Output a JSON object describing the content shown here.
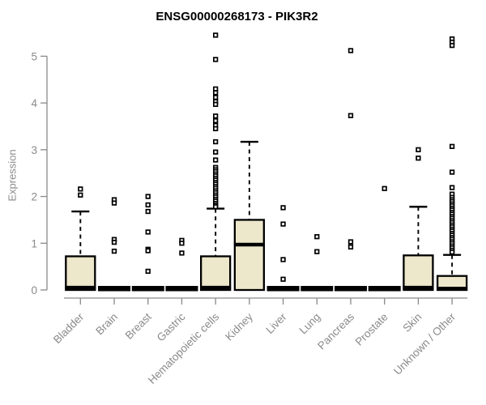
{
  "chart_data": {
    "type": "boxplot",
    "title": "ENSG00000268173 - PIK3R2",
    "ylabel": "Expression",
    "xlabel": "",
    "ylim": [
      0,
      5.5
    ],
    "yticks": [
      0,
      1,
      2,
      3,
      4,
      5
    ],
    "grid": false,
    "legend": false,
    "categories": [
      "Bladder",
      "Brain",
      "Breast",
      "Gastric",
      "Hematopoietic cells",
      "Kidney",
      "Liver",
      "Lung",
      "Pancreas",
      "Prostate",
      "Skin",
      "Unknown / Other"
    ],
    "series": [
      {
        "category": "Bladder",
        "whisker_low": 0,
        "q1": 0,
        "median": 0.05,
        "q3": 0.72,
        "whisker_high": 1.68,
        "outliers": [
          2.16,
          2.03
        ]
      },
      {
        "category": "Brain",
        "whisker_low": 0,
        "q1": 0,
        "median": 0,
        "q3": 0,
        "whisker_high": 0,
        "outliers": [
          1.93,
          1.86,
          1.08,
          1.02,
          0.83
        ]
      },
      {
        "category": "Breast",
        "whisker_low": 0,
        "q1": 0,
        "median": 0,
        "q3": 0,
        "whisker_high": 0,
        "outliers": [
          2.0,
          1.82,
          1.68,
          1.24,
          0.87,
          0.84,
          0.4
        ]
      },
      {
        "category": "Gastric",
        "whisker_low": 0,
        "q1": 0,
        "median": 0,
        "q3": 0,
        "whisker_high": 0,
        "outliers": [
          1.06,
          1.0,
          0.79
        ]
      },
      {
        "category": "Hematopoietic cells",
        "whisker_low": 0,
        "q1": 0,
        "median": 0.05,
        "q3": 0.72,
        "whisker_high": 1.74,
        "outliers": [
          5.45,
          4.93,
          4.3,
          4.22,
          4.12,
          4.03,
          3.97,
          3.72,
          3.62,
          3.52,
          3.45,
          3.17,
          2.95,
          2.78,
          2.62,
          2.57,
          2.53,
          2.48,
          2.44,
          2.39,
          2.35,
          2.3,
          2.26,
          2.21,
          2.17,
          2.12,
          2.08,
          2.03,
          1.99,
          1.94,
          1.9,
          1.85,
          1.81,
          1.78
        ]
      },
      {
        "category": "Kidney",
        "whisker_low": 0,
        "q1": 0,
        "median": 0.97,
        "q3": 1.5,
        "whisker_high": 3.17,
        "outliers": []
      },
      {
        "category": "Liver",
        "whisker_low": 0,
        "q1": 0,
        "median": 0,
        "q3": 0,
        "whisker_high": 0,
        "outliers": [
          1.76,
          1.41,
          0.65,
          0.23
        ]
      },
      {
        "category": "Lung",
        "whisker_low": 0,
        "q1": 0,
        "median": 0,
        "q3": 0,
        "whisker_high": 0,
        "outliers": [
          1.14,
          0.82
        ]
      },
      {
        "category": "Pancreas",
        "whisker_low": 0,
        "q1": 0,
        "median": 0,
        "q3": 0,
        "whisker_high": 0,
        "outliers": [
          5.12,
          3.73,
          1.03,
          0.92
        ]
      },
      {
        "category": "Prostate",
        "whisker_low": 0,
        "q1": 0,
        "median": 0,
        "q3": 0,
        "whisker_high": 0,
        "outliers": [
          2.17
        ]
      },
      {
        "category": "Skin",
        "whisker_low": 0,
        "q1": 0,
        "median": 0.05,
        "q3": 0.74,
        "whisker_high": 1.78,
        "outliers": [
          3.0,
          2.82
        ]
      },
      {
        "category": "Unknown / Other",
        "whisker_low": 0,
        "q1": 0,
        "median": 0.03,
        "q3": 0.3,
        "whisker_high": 0.75,
        "outliers": [
          5.37,
          5.3,
          5.23,
          3.07,
          2.52,
          2.19,
          2.05,
          1.98,
          1.93,
          1.89,
          1.84,
          1.8,
          1.75,
          1.71,
          1.66,
          1.62,
          1.57,
          1.53,
          1.48,
          1.44,
          1.39,
          1.35,
          1.3,
          1.26,
          1.21,
          1.17,
          1.12,
          1.08,
          1.03,
          0.99,
          0.94,
          0.9,
          0.85,
          0.81
        ]
      }
    ],
    "colors": {
      "box_fill": "#EDE7CB",
      "box_border": "#000000",
      "median": "#000000",
      "whisker": "#000000",
      "outlier_stroke": "#000000",
      "outlier_fill": "#ffffff",
      "axis": "#8a8a8a",
      "tick_label": "#8a8a8a",
      "title": "#000000"
    }
  }
}
